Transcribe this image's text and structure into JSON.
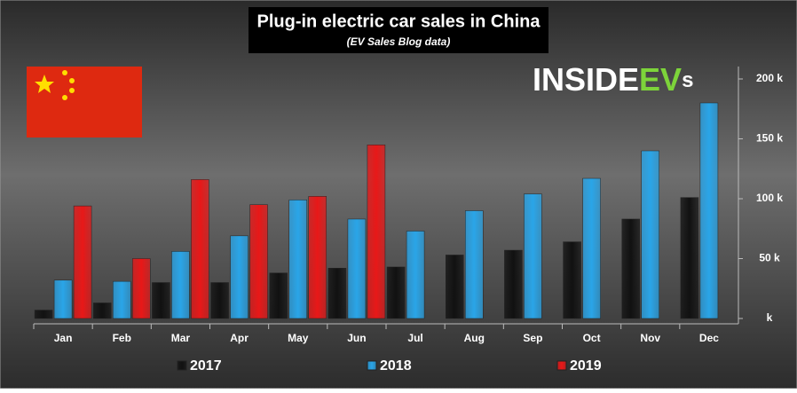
{
  "chart_data": {
    "type": "bar",
    "title": "Plug-in electric car sales in China",
    "subtitle": "(EV Sales Blog data)",
    "logo": [
      "INSIDE",
      "EV",
      "s"
    ],
    "categories": [
      "Jan",
      "Feb",
      "Mar",
      "Apr",
      "May",
      "Jun",
      "Jul",
      "Aug",
      "Sep",
      "Oct",
      "Nov",
      "Dec"
    ],
    "series": [
      {
        "name": "2017",
        "color": "#111111",
        "values": [
          7,
          13,
          30,
          30,
          38,
          42,
          43,
          53,
          57,
          64,
          83,
          101
        ]
      },
      {
        "name": "2018",
        "color": "#2aa5e8",
        "values": [
          32,
          31,
          56,
          69,
          99,
          83,
          73,
          90,
          104,
          117,
          140,
          180
        ]
      },
      {
        "name": "2019",
        "color": "#e81818",
        "values": [
          94,
          50,
          116,
          95,
          102,
          145,
          null,
          null,
          null,
          null,
          null,
          null
        ]
      }
    ],
    "ylim": [
      0,
      200
    ],
    "yticks": [
      {
        "value": 0,
        "label": "k"
      },
      {
        "value": 50,
        "label": "50 k"
      },
      {
        "value": 100,
        "label": "100 k"
      },
      {
        "value": 150,
        "label": "150 k"
      },
      {
        "value": 200,
        "label": "200 k"
      }
    ],
    "grid": false,
    "legend": "bottom"
  }
}
